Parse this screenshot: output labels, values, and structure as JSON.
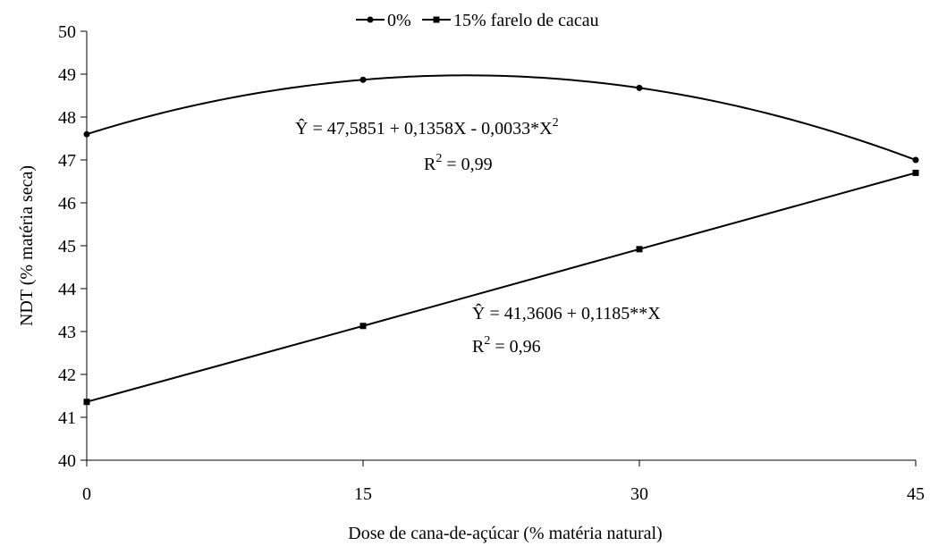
{
  "chart_data": {
    "type": "line",
    "xlabel": "Dose de cana-de-açúcar (% matéria natural)",
    "ylabel": "NDT (% matéria seca)",
    "x": [
      0,
      15,
      30,
      45
    ],
    "xticks": [
      "0",
      "15",
      "30",
      "45"
    ],
    "xlim": [
      0,
      45
    ],
    "yticks": [
      "40",
      "41",
      "42",
      "43",
      "44",
      "45",
      "46",
      "47",
      "48",
      "49",
      "50"
    ],
    "ylim": [
      40,
      50
    ],
    "grid": false,
    "legend_position": "top-center",
    "series": [
      {
        "name": "0%",
        "marker": "circle",
        "values": [
          47.6,
          48.87,
          48.68,
          47.0
        ],
        "curve": {
          "intercept": 47.5851,
          "linear": 0.1358,
          "quadratic": -0.0033
        },
        "color": "#000000"
      },
      {
        "name": "15% farelo de cacau",
        "marker": "square",
        "values": [
          41.36,
          43.13,
          44.92,
          46.7
        ],
        "color": "#000000"
      }
    ],
    "annotations": {
      "eq1": {
        "y_hat": "Ŷ",
        "body": " = 47,5851 + 0,1358X - 0,0033*X",
        "sup": "2"
      },
      "r1": {
        "label": "R",
        "sup": "2",
        "body": " = 0,99"
      },
      "eq2": {
        "y_hat": "Ŷ",
        "body": " = 41,3606 + 0,1185**X"
      },
      "r2": {
        "label": "R",
        "sup": "2",
        "body": " = 0,96"
      }
    }
  }
}
